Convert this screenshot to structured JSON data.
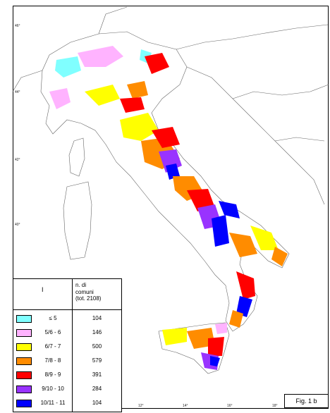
{
  "legend": {
    "col1_header": "I",
    "col2_header_line1": "n. di",
    "col2_header_line2": "comuni",
    "col2_header_line3": "(tot. 2108)",
    "rows": [
      {
        "range": "≤ 5",
        "count": "104",
        "color": "#80ffff"
      },
      {
        "range": "5/6 - 6",
        "count": "146",
        "color": "#ffb3ff"
      },
      {
        "range": "6/7 - 7",
        "count": "500",
        "color": "#ffff00"
      },
      {
        "range": "7/8 - 8",
        "count": "579",
        "color": "#ff8c00"
      },
      {
        "range": "8/9 - 9",
        "count": "391",
        "color": "#ff0000"
      },
      {
        "range": "9/10 - 10",
        "count": "284",
        "color": "#9933ff"
      },
      {
        "range": "10/11 - 11",
        "count": "104",
        "color": "#0000ff"
      }
    ]
  },
  "figure_label": "Fig. 1 b",
  "lat_ticks": [
    "46°",
    "44°",
    "42°",
    "40°"
  ],
  "lon_ticks": [
    "12°",
    "14°",
    "16°",
    "18°"
  ]
}
